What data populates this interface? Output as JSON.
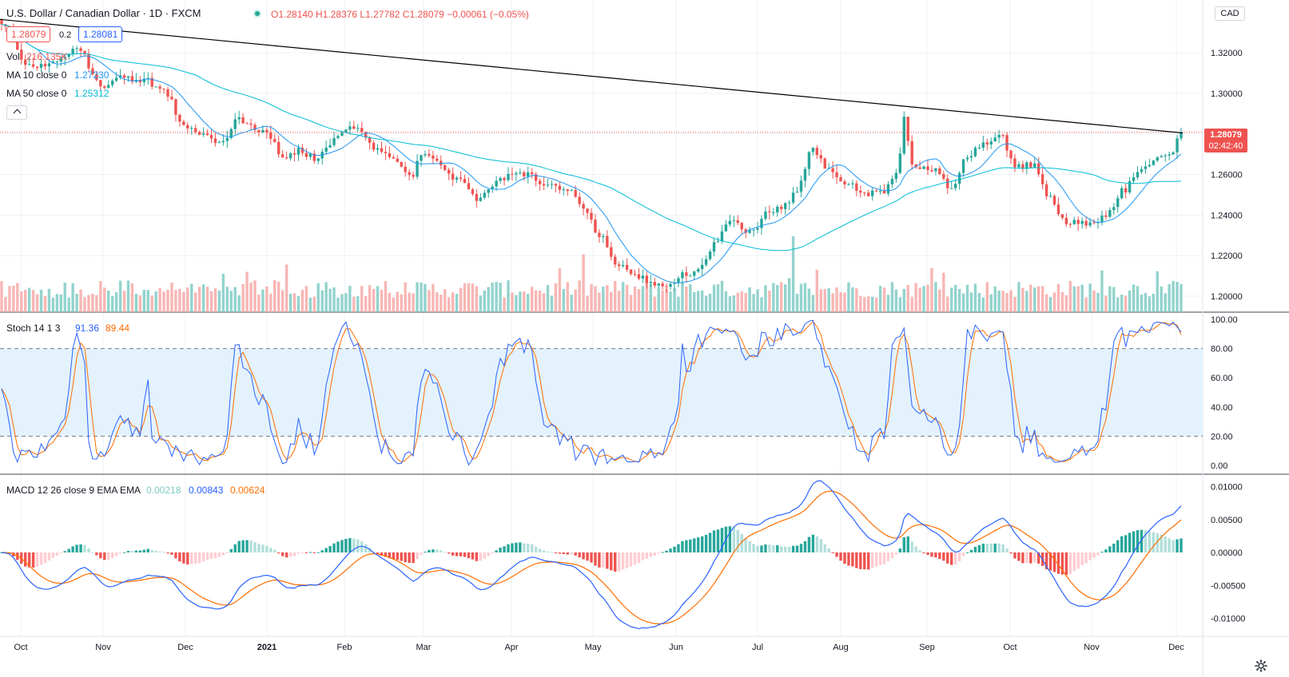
{
  "header": {
    "symbol_title": "U.S. Dollar / Canadian Dollar · 1D · FXCM",
    "ohlc": "O1.28140  H1.28376  L1.27782  C1.28079  −0.00061 (−0.05%)",
    "bid": "1.28079",
    "spread": "0.2",
    "ask": "1.28081"
  },
  "legend": {
    "vol_label": "Vol",
    "vol_value": "216.135K",
    "ma10_label": "MA 10 close 0",
    "ma10_value": "1.27230",
    "ma50_label": "MA 50 close 0",
    "ma50_value": "1.25312",
    "collapse_icon": "chevron-up-icon"
  },
  "currency_button": "CAD",
  "price_tag": {
    "price": "1.28079",
    "countdown": "02:42:40"
  },
  "stoch_legend": {
    "label": "Stoch 14 1 3",
    "k": "91.36",
    "d": "89.44"
  },
  "macd_legend": {
    "label": "MACD 12 26 close 9 EMA EMA",
    "hist": "0.00218",
    "macd": "0.00843",
    "signal": "0.00624"
  },
  "settings_icon": "gear-icon",
  "colors": {
    "up": "#26a69a",
    "down": "#ef5350",
    "ma10": "#2196f3",
    "ma50": "#00bcd4",
    "stoch_k": "#2962ff",
    "stoch_d": "#ff6d00",
    "band": "#e3f2fd",
    "trendline": "#000000"
  },
  "chart_data": [
    {
      "type": "candlestick",
      "title": "U.S. Dollar / Canadian Dollar · 1D · FXCM",
      "ylim": [
        1.195,
        1.34
      ],
      "y_ticks": [
        "1.32000",
        "1.30000",
        "1.28000",
        "1.26000",
        "1.24000",
        "1.22000",
        "1.20000"
      ],
      "x_ticks": [
        "Oct",
        "Nov",
        "Dec",
        "2021",
        "Feb",
        "Mar",
        "Apr",
        "May",
        "Jun",
        "Jul",
        "Aug",
        "Sep",
        "Oct",
        "Nov",
        "Dec"
      ],
      "price_anchors": [
        [
          "2020-09-28",
          1.335
        ],
        [
          "2020-10-08",
          1.313
        ],
        [
          "2020-10-20",
          1.316
        ],
        [
          "2020-10-26",
          1.323
        ],
        [
          "2020-10-31",
          1.311
        ],
        [
          "2020-11-04",
          1.302
        ],
        [
          "2020-11-10",
          1.308
        ],
        [
          "2020-11-18",
          1.307
        ],
        [
          "2020-11-26",
          1.301
        ],
        [
          "2020-12-04",
          1.283
        ],
        [
          "2020-12-12",
          1.279
        ],
        [
          "2020-12-18",
          1.275
        ],
        [
          "2020-12-22",
          1.288
        ],
        [
          "2020-12-28",
          1.283
        ],
        [
          "2021-01-04",
          1.279
        ],
        [
          "2021-01-08",
          1.268
        ],
        [
          "2021-01-14",
          1.272
        ],
        [
          "2021-01-20",
          1.268
        ],
        [
          "2021-01-24",
          1.274
        ],
        [
          "2021-01-30",
          1.282
        ],
        [
          "2021-02-04",
          1.283
        ],
        [
          "2021-02-12",
          1.272
        ],
        [
          "2021-02-18",
          1.266
        ],
        [
          "2021-02-24",
          1.258
        ],
        [
          "2021-02-28",
          1.271
        ],
        [
          "2021-03-06",
          1.265
        ],
        [
          "2021-03-12",
          1.258
        ],
        [
          "2021-03-20",
          1.248
        ],
        [
          "2021-03-24",
          1.254
        ],
        [
          "2021-04-01",
          1.259
        ],
        [
          "2021-04-08",
          1.26
        ],
        [
          "2021-04-14",
          1.255
        ],
        [
          "2021-04-20",
          1.253
        ],
        [
          "2021-04-24",
          1.251
        ],
        [
          "2021-04-28",
          1.242
        ],
        [
          "2021-05-04",
          1.229
        ],
        [
          "2021-05-10",
          1.215
        ],
        [
          "2021-05-16",
          1.211
        ],
        [
          "2021-05-22",
          1.207
        ],
        [
          "2021-05-28",
          1.205
        ],
        [
          "2021-06-02",
          1.21
        ],
        [
          "2021-06-08",
          1.212
        ],
        [
          "2021-06-14",
          1.225
        ],
        [
          "2021-06-20",
          1.236
        ],
        [
          "2021-06-28",
          1.232
        ],
        [
          "2021-07-04",
          1.241
        ],
        [
          "2021-07-10",
          1.245
        ],
        [
          "2021-07-14",
          1.252
        ],
        [
          "2021-07-20",
          1.272
        ],
        [
          "2021-07-26",
          1.262
        ],
        [
          "2021-08-02",
          1.256
        ],
        [
          "2021-08-08",
          1.25
        ],
        [
          "2021-08-14",
          1.251
        ],
        [
          "2021-08-20",
          1.262
        ],
        [
          "2021-08-22",
          1.287
        ],
        [
          "2021-08-26",
          1.262
        ],
        [
          "2021-09-02",
          1.263
        ],
        [
          "2021-09-08",
          1.254
        ],
        [
          "2021-09-14",
          1.267
        ],
        [
          "2021-09-20",
          1.276
        ],
        [
          "2021-09-26",
          1.28
        ],
        [
          "2021-10-02",
          1.264
        ],
        [
          "2021-10-08",
          1.265
        ],
        [
          "2021-10-14",
          1.249
        ],
        [
          "2021-10-20",
          1.236
        ],
        [
          "2021-10-26",
          1.236
        ],
        [
          "2021-11-01",
          1.238
        ],
        [
          "2021-11-06",
          1.243
        ],
        [
          "2021-11-10",
          1.252
        ],
        [
          "2021-11-16",
          1.262
        ],
        [
          "2021-11-22",
          1.268
        ],
        [
          "2021-11-28",
          1.272
        ],
        [
          "2021-12-01",
          1.281
        ]
      ],
      "series": [
        {
          "name": "MA 10 close 0",
          "last": "1.27230"
        },
        {
          "name": "MA 50 close 0",
          "last": "1.25312"
        },
        {
          "name": "Vol",
          "last": "216.135K"
        }
      ]
    },
    {
      "type": "line",
      "title": "Stoch 14 1 3",
      "ylim": [
        0,
        100
      ],
      "y_ticks": [
        "100.00",
        "80.00",
        "60.00",
        "40.00",
        "20.00",
        "0.00"
      ],
      "reference_lines": [
        80,
        20
      ],
      "series": [
        {
          "name": "%K",
          "last": "91.36"
        },
        {
          "name": "%D",
          "last": "89.44"
        }
      ]
    },
    {
      "type": "line",
      "title": "MACD 12 26 close 9 EMA EMA",
      "ylim": [
        -0.0115,
        0.0115
      ],
      "y_ticks": [
        "0.01000",
        "0.00500",
        "0.00000",
        "-0.00500",
        "-0.01000"
      ],
      "series": [
        {
          "name": "Histogram",
          "last": "0.00218"
        },
        {
          "name": "MACD",
          "last": "0.00843"
        },
        {
          "name": "Signal",
          "last": "0.00624"
        }
      ]
    }
  ]
}
